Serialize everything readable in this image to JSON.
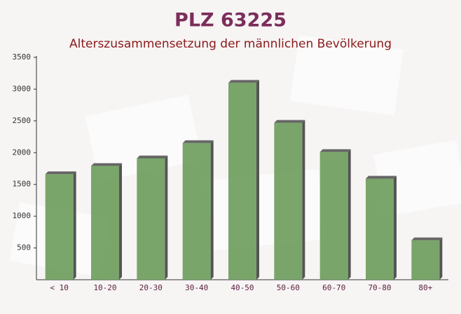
{
  "chart_data": {
    "type": "bar",
    "title": "PLZ 63225",
    "subtitle": "Alterszusammensetzung der männlichen Bevölkerung",
    "categories": [
      "< 10",
      "10-20",
      "20-30",
      "30-40",
      "40-50",
      "50-60",
      "60-70",
      "70-80",
      "80+"
    ],
    "values": [
      1660,
      1790,
      1910,
      2150,
      3100,
      2470,
      2010,
      1590,
      620
    ],
    "color": "#6b9c5b",
    "ylim": [
      0,
      3500
    ],
    "yticks": [
      500,
      1000,
      1500,
      2000,
      2500,
      3000,
      3500
    ]
  }
}
